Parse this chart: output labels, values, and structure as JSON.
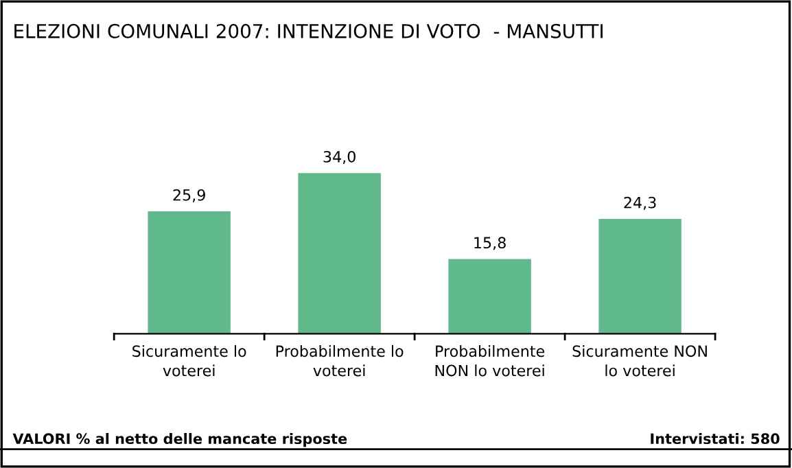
{
  "chart_data": {
    "type": "bar",
    "title": "ELEZIONI COMUNALI 2007: INTENZIONE DI VOTO  - MANSUTTI",
    "categories": [
      "Sicuramente lo\nvoterei",
      "Probabilmente lo\nvoterei",
      "Probabilmente\nNON lo voterei",
      "Sicuramente NON\nlo voterei"
    ],
    "values": [
      25.9,
      34.0,
      15.8,
      24.3
    ],
    "value_labels": [
      "25,9",
      "34,0",
      "15,8",
      "24,3"
    ],
    "color": "#5fb98a",
    "grid": false,
    "legend": false,
    "annotations": [
      "VALORI % al netto delle mancate risposte",
      "Intervistati: 580"
    ]
  }
}
